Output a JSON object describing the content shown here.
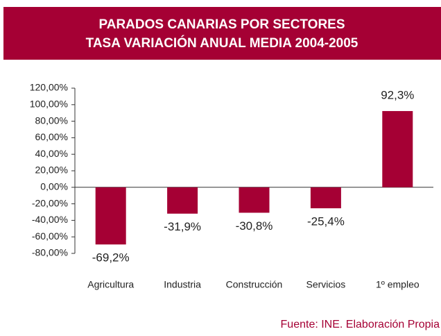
{
  "chart_data": {
    "type": "bar",
    "title": "PARADOS CANARIAS POR SECTORES",
    "subtitle": "TASA VARIACIÓN ANUAL MEDIA 2004-2005",
    "categories": [
      "Agricultura",
      "Industria",
      "Construcción",
      "Servicios",
      "1º empleo"
    ],
    "values": [
      -69.2,
      -31.9,
      -30.8,
      -25.4,
      92.3
    ],
    "value_labels": [
      "-69,2%",
      "-31,9%",
      "-30,8%",
      "-25,4%",
      "92,3%"
    ],
    "color": "#a50034",
    "ylim": [
      -80,
      120
    ],
    "yticks": [
      {
        "value": -80,
        "label": "-80,00%"
      },
      {
        "value": -60,
        "label": "-60,00%"
      },
      {
        "value": -40,
        "label": "-40,00%"
      },
      {
        "value": -20,
        "label": "-20,00%"
      },
      {
        "value": 0,
        "label": "0,00%"
      },
      {
        "value": 20,
        "label": "20,00%"
      },
      {
        "value": 40,
        "label": "40,00%"
      },
      {
        "value": 60,
        "label": "60,00%"
      },
      {
        "value": 80,
        "label": "80,00%"
      },
      {
        "value": 100,
        "label": "100,00%"
      },
      {
        "value": 120,
        "label": "120,00%"
      }
    ],
    "source": "Fuente: INE. Elaboración Propia"
  }
}
